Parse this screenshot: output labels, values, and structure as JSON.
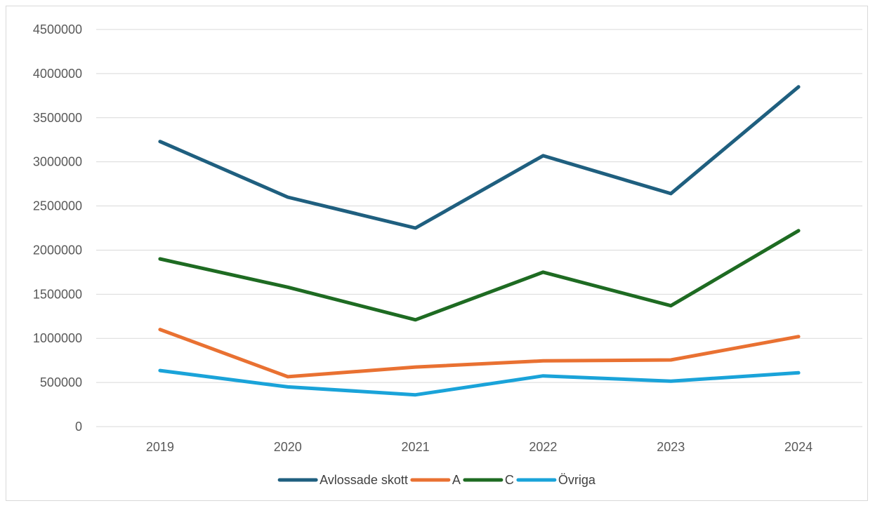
{
  "chart_data": {
    "type": "line",
    "title": "",
    "xlabel": "",
    "ylabel": "",
    "categories": [
      "2019",
      "2020",
      "2021",
      "2022",
      "2023",
      "2024"
    ],
    "ylim": [
      0,
      4500000
    ],
    "yticks": [
      "0",
      "500000",
      "1000000",
      "1500000",
      "2000000",
      "2500000",
      "3000000",
      "3500000",
      "4000000",
      "4500000"
    ],
    "grid": true,
    "legend_position": "bottom",
    "series": [
      {
        "name": "Avlossade skott",
        "color": "#1f5f7f",
        "values": [
          3230000,
          2600000,
          2250000,
          3070000,
          2640000,
          3850000
        ]
      },
      {
        "name": "A",
        "color": "#e97132",
        "values": [
          1100000,
          565000,
          675000,
          745000,
          755000,
          1020000
        ]
      },
      {
        "name": "C",
        "color": "#1e6b22",
        "values": [
          1900000,
          1580000,
          1210000,
          1750000,
          1370000,
          2220000
        ]
      },
      {
        "name": "Övriga",
        "color": "#1aa3d9",
        "values": [
          635000,
          450000,
          360000,
          575000,
          515000,
          610000
        ]
      }
    ]
  }
}
